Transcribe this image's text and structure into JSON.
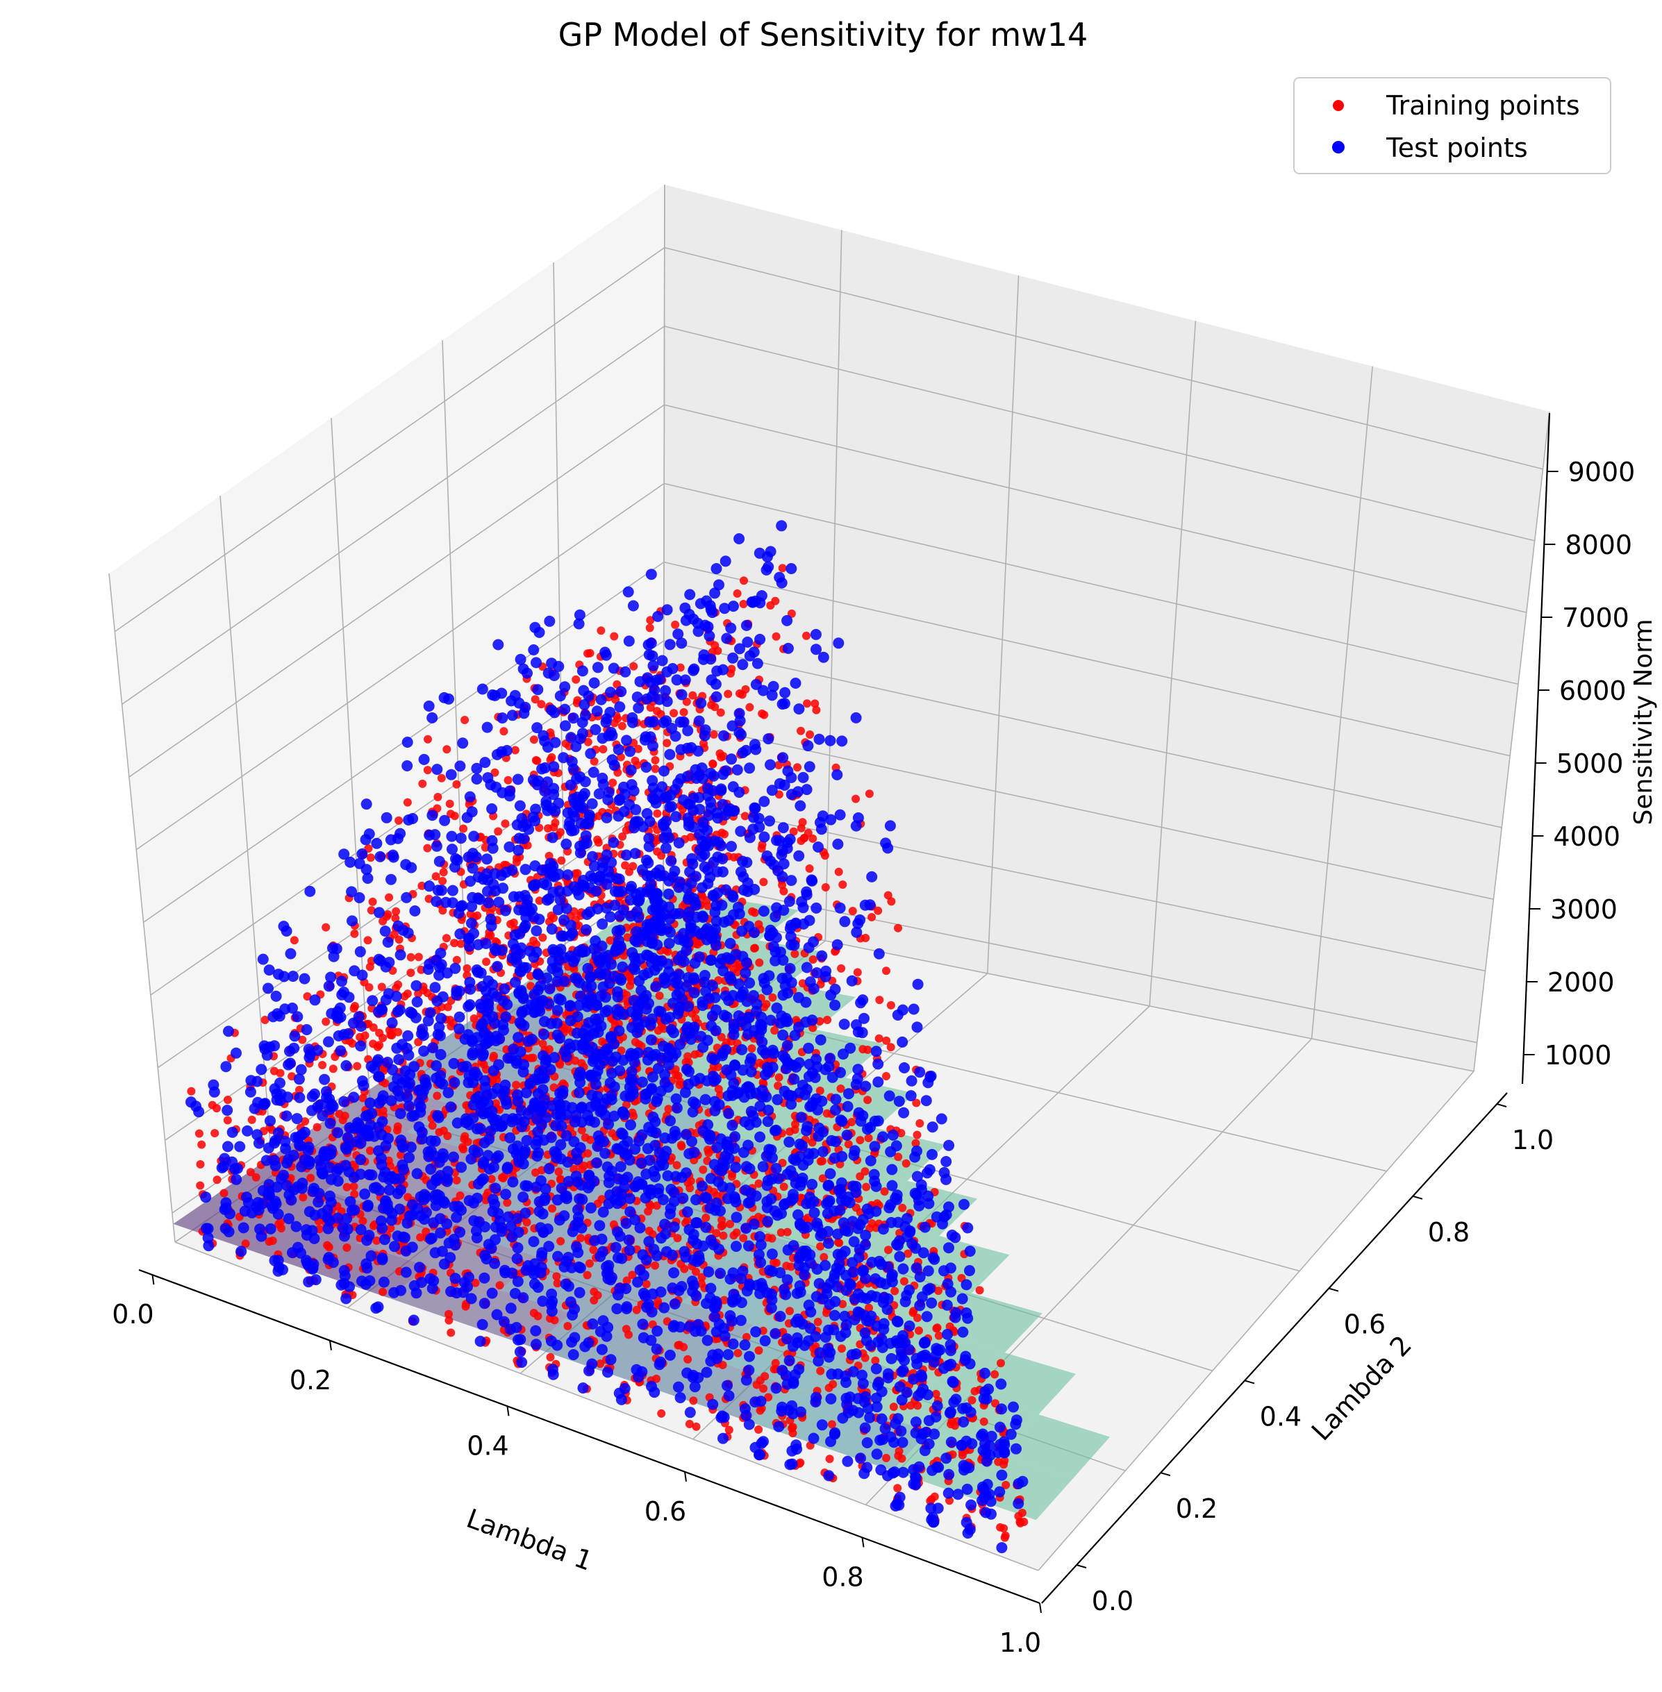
{
  "chart_data": {
    "type": "scatter",
    "subtype": "3d-scatter-with-surface",
    "title": "GP Model of Sensitivity for mw14",
    "xlabel": "Lambda 1",
    "ylabel": "Lambda 2",
    "zlabel": "Sensitivity Norm",
    "xlim": [
      0.0,
      1.0
    ],
    "ylim": [
      0.0,
      1.0
    ],
    "zlim": [
      600,
      9800
    ],
    "x_ticks": [
      {
        "value": 0.0,
        "label": "0.0"
      },
      {
        "value": 0.2,
        "label": "0.2"
      },
      {
        "value": 0.4,
        "label": "0.4"
      },
      {
        "value": 0.6,
        "label": "0.6"
      },
      {
        "value": 0.8,
        "label": "0.8"
      },
      {
        "value": 1.0,
        "label": "1.0"
      }
    ],
    "y_ticks": [
      {
        "value": 0.0,
        "label": "0.0"
      },
      {
        "value": 0.2,
        "label": "0.2"
      },
      {
        "value": 0.4,
        "label": "0.4"
      },
      {
        "value": 0.6,
        "label": "0.6"
      },
      {
        "value": 0.8,
        "label": "0.8"
      },
      {
        "value": 1.0,
        "label": "1.0"
      }
    ],
    "z_ticks": [
      {
        "value": 1000,
        "label": "1000"
      },
      {
        "value": 2000,
        "label": "2000"
      },
      {
        "value": 3000,
        "label": "3000"
      },
      {
        "value": 4000,
        "label": "4000"
      },
      {
        "value": 5000,
        "label": "5000"
      },
      {
        "value": 6000,
        "label": "6000"
      },
      {
        "value": 7000,
        "label": "7000"
      },
      {
        "value": 8000,
        "label": "8000"
      },
      {
        "value": 9000,
        "label": "9000"
      }
    ],
    "grid": true,
    "legend": {
      "placement": "top-right"
    },
    "series": [
      {
        "name": "Training points",
        "color": "#ff0000",
        "marker": "circle"
      },
      {
        "name": "Test points",
        "color": "#0000ff",
        "marker": "circle"
      }
    ],
    "surface": {
      "colormap": "viridis",
      "alpha": 0.6
    }
  }
}
